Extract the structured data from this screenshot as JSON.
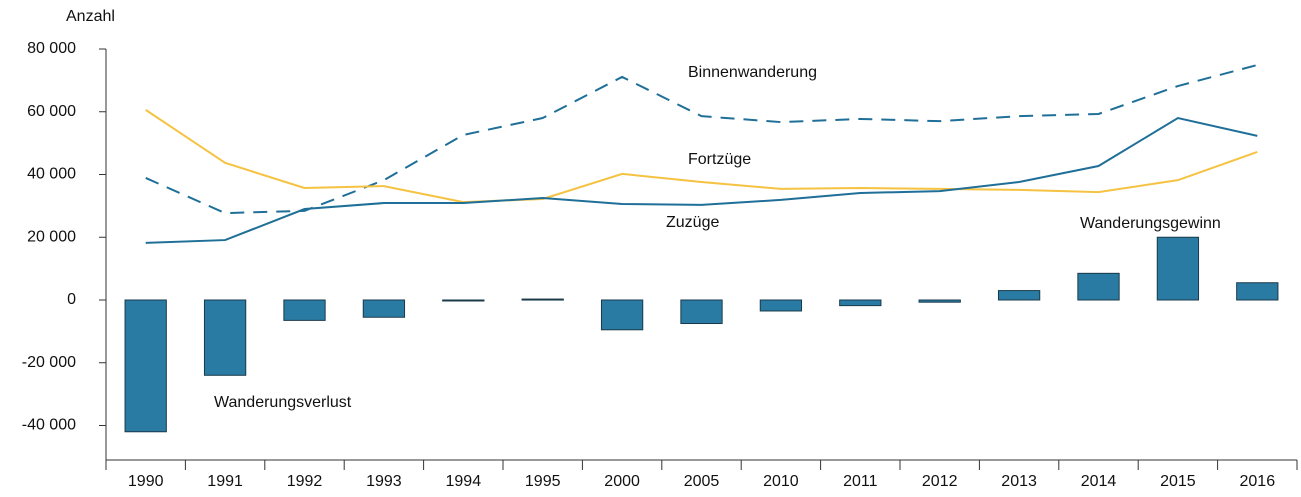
{
  "chart_data": {
    "type": "bar",
    "y_label": "Anzahl",
    "categories": [
      "1990",
      "1991",
      "1992",
      "1993",
      "1994",
      "1995",
      "2000",
      "2005",
      "2010",
      "2011",
      "2012",
      "2013",
      "2014",
      "2015",
      "2016"
    ],
    "ylim": [
      -51000,
      80000
    ],
    "yticks": [
      {
        "value": -40000,
        "label": "-40 000"
      },
      {
        "value": -20000,
        "label": "-20 000"
      },
      0,
      {
        "value": 20000,
        "label": "20 000"
      },
      {
        "value": 40000,
        "label": "40 000"
      },
      {
        "value": 60000,
        "label": "60 000"
      },
      {
        "value": 80000,
        "label": "80 000"
      }
    ],
    "annotations": [
      "Wanderungsverlust",
      "Wanderungsgewinn"
    ],
    "series": [
      {
        "type": "bar",
        "color": "#2a7ba3",
        "values": [
          -42000,
          -24000,
          -6500,
          -5500,
          -300,
          300,
          -9500,
          -7500,
          -3500,
          -1800,
          -700,
          3000,
          8500,
          20000,
          5500
        ]
      },
      {
        "type": "line",
        "name": "Binnenwanderung",
        "color": "#1f6f98",
        "dash": true,
        "values": [
          38900,
          27700,
          28400,
          38200,
          52600,
          58000,
          71100,
          58600,
          56700,
          57700,
          57000,
          58600,
          59300,
          68200,
          74900
        ]
      },
      {
        "type": "line",
        "name": "Fortzüge",
        "color": "#f5c242",
        "values": [
          60600,
          43700,
          35700,
          36300,
          31200,
          32200,
          40200,
          37600,
          35400,
          35700,
          35400,
          35100,
          34400,
          38200,
          47200
        ]
      },
      {
        "type": "line",
        "name": "Zuzüge",
        "color": "#1f6f98",
        "values": [
          18200,
          19100,
          29000,
          30900,
          30900,
          32500,
          30600,
          30300,
          31900,
          34100,
          34700,
          37600,
          42700,
          58000,
          52300
        ]
      }
    ]
  }
}
